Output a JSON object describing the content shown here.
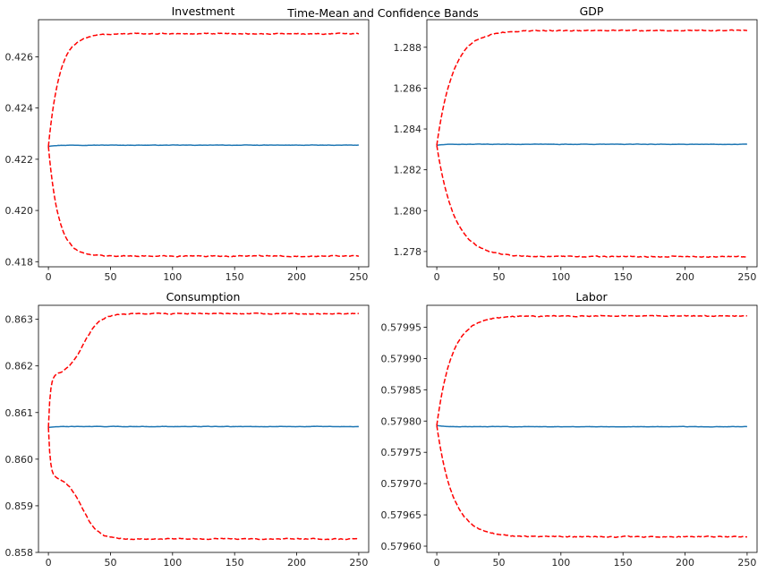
{
  "figure": {
    "suptitle": "Time-Mean and Confidence Bands"
  },
  "colors": {
    "mean_line": "#1f77b4",
    "band_line": "#ff0000",
    "axes": "#000000",
    "text": "#262626"
  },
  "chart_data": [
    {
      "type": "line",
      "title": "Investment",
      "xlabel": "",
      "ylabel": "",
      "xlim": [
        -8,
        258
      ],
      "ylim": [
        0.4178,
        0.42745
      ],
      "x_ticks": [
        0,
        50,
        100,
        150,
        200,
        250
      ],
      "x_tick_labels": [
        "0",
        "50",
        "100",
        "150",
        "200",
        "250"
      ],
      "y_ticks": [
        0.418,
        0.42,
        0.422,
        0.424,
        0.426
      ],
      "y_tick_labels": [
        "0.418",
        "0.420",
        "0.422",
        "0.424",
        "0.426"
      ],
      "x_end": 250,
      "grid": false,
      "series": [
        {
          "role": "mean",
          "style": "solid",
          "start": 0.4225,
          "plateau": 0.42255,
          "tau": 5,
          "x_range": [
            0,
            250
          ]
        },
        {
          "role": "upper",
          "style": "dashed",
          "start": 0.4225,
          "plateau": 0.4269,
          "tau": 9,
          "x_range": [
            0,
            250
          ]
        },
        {
          "role": "lower",
          "style": "dashed",
          "start": 0.4225,
          "plateau": 0.41822,
          "tau": 8,
          "x_range": [
            0,
            250
          ]
        }
      ]
    },
    {
      "type": "line",
      "title": "GDP",
      "xlabel": "",
      "ylabel": "",
      "xlim": [
        -8,
        258
      ],
      "ylim": [
        1.27725,
        1.28935
      ],
      "x_ticks": [
        0,
        50,
        100,
        150,
        200,
        250
      ],
      "x_tick_labels": [
        "0",
        "50",
        "100",
        "150",
        "200",
        "250"
      ],
      "y_ticks": [
        1.278,
        1.28,
        1.282,
        1.284,
        1.286,
        1.288
      ],
      "y_tick_labels": [
        "1.278",
        "1.280",
        "1.282",
        "1.284",
        "1.286",
        "1.288"
      ],
      "x_end": 250,
      "grid": false,
      "series": [
        {
          "role": "mean",
          "style": "solid",
          "start": 1.2832,
          "plateau": 1.28325,
          "tau": 5,
          "x_range": [
            0,
            250
          ]
        },
        {
          "role": "upper",
          "style": "dashed",
          "start": 1.2832,
          "plateau": 1.28882,
          "tau": 13,
          "x_range": [
            0,
            250
          ]
        },
        {
          "role": "lower",
          "style": "dashed",
          "start": 1.2832,
          "plateau": 1.27775,
          "tau": 14,
          "x_range": [
            0,
            250
          ]
        }
      ]
    },
    {
      "type": "line",
      "title": "Consumption",
      "xlabel": "",
      "ylabel": "",
      "xlim": [
        -8,
        258
      ],
      "ylim": [
        0.858,
        0.8633
      ],
      "x_ticks": [
        0,
        50,
        100,
        150,
        200,
        250
      ],
      "x_tick_labels": [
        "0",
        "50",
        "100",
        "150",
        "200",
        "250"
      ],
      "y_ticks": [
        0.858,
        0.859,
        0.86,
        0.861,
        0.862,
        0.863
      ],
      "y_tick_labels": [
        "0.858",
        "0.859",
        "0.860",
        "0.861",
        "0.862",
        "0.863"
      ],
      "x_end": 250,
      "grid": false,
      "series": [
        {
          "role": "mean",
          "style": "solid",
          "start": 0.86068,
          "plateau": 0.8607,
          "tau": 5,
          "x_range": [
            0,
            250
          ]
        },
        {
          "role": "upper",
          "style": "dashed",
          "start": 0.86068,
          "stage1": 0.8618,
          "tau1": 1.5,
          "plateau": 0.86312,
          "tau": 15,
          "center": 28,
          "x_range": [
            0,
            250
          ]
        },
        {
          "role": "lower",
          "style": "dashed",
          "start": 0.86068,
          "stage1": 0.85962,
          "tau1": 1.5,
          "plateau": 0.85829,
          "tau": 14,
          "center": 27,
          "x_range": [
            0,
            250
          ]
        }
      ]
    },
    {
      "type": "line",
      "title": "Labor",
      "xlabel": "",
      "ylabel": "",
      "xlim": [
        -8,
        258
      ],
      "ylim": [
        0.57959,
        0.579985
      ],
      "x_ticks": [
        0,
        50,
        100,
        150,
        200,
        250
      ],
      "x_tick_labels": [
        "0",
        "50",
        "100",
        "150",
        "200",
        "250"
      ],
      "y_ticks": [
        0.5796,
        0.57965,
        0.5797,
        0.57975,
        0.5798,
        0.57985,
        0.5799,
        0.57995
      ],
      "y_tick_labels": [
        "0.57960",
        "0.57965",
        "0.57970",
        "0.57975",
        "0.57980",
        "0.57985",
        "0.57990",
        "0.57995"
      ],
      "x_end": 250,
      "grid": false,
      "series": [
        {
          "role": "mean",
          "style": "solid",
          "start": 0.579793,
          "plateau": 0.579791,
          "tau": 5,
          "x_range": [
            0,
            250
          ]
        },
        {
          "role": "upper",
          "style": "dashed",
          "start": 0.579793,
          "plateau": 0.579968,
          "tau": 12,
          "x_range": [
            0,
            250
          ]
        },
        {
          "role": "lower",
          "style": "dashed",
          "start": 0.579793,
          "plateau": 0.579615,
          "tau": 13,
          "x_range": [
            0,
            250
          ]
        }
      ]
    }
  ]
}
